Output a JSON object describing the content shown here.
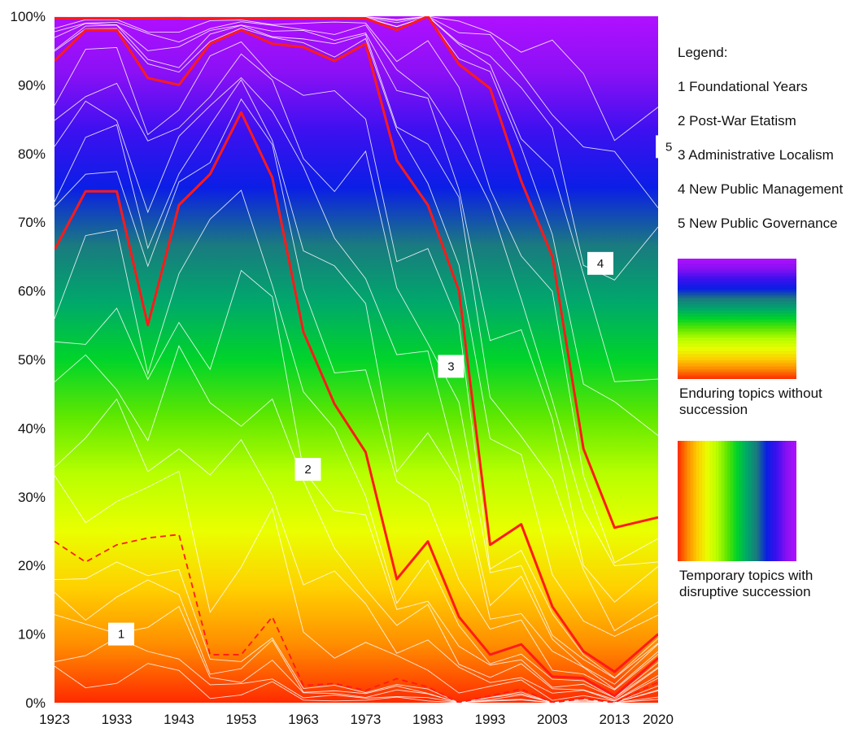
{
  "chart_data": {
    "type": "area",
    "stacked": true,
    "normalized": "percent",
    "x": [
      1923,
      1928,
      1933,
      1938,
      1943,
      1948,
      1953,
      1958,
      1963,
      1968,
      1973,
      1978,
      1983,
      1988,
      1993,
      1998,
      2003,
      2008,
      2013,
      2020
    ],
    "x_tick_labels": [
      "1923",
      "1933",
      "1943",
      "1953",
      "1963",
      "1973",
      "1983",
      "1993",
      "2003",
      "2013",
      "2020"
    ],
    "y_tick_labels": [
      "0%",
      "10%",
      "20%",
      "30%",
      "40%",
      "50%",
      "60%",
      "70%",
      "80%",
      "90%",
      "100%"
    ],
    "ylim": [
      0,
      100
    ],
    "era_boundaries_cumulative_percent": [
      {
        "name": "1 Foundational Years",
        "dashed": true,
        "values": [
          23.5,
          20.5,
          23,
          24,
          24.5,
          7,
          7,
          12.5,
          2.5,
          2.8,
          1.8,
          3.5,
          2.3,
          0,
          1,
          2,
          0,
          0.6,
          0,
          3
        ]
      },
      {
        "name": "2 Post-War Etatism",
        "dashed": false,
        "values": [
          66,
          74.5,
          74.5,
          55,
          72.5,
          77,
          86,
          76.5,
          54,
          43.5,
          36.5,
          18,
          23.5,
          12.5,
          7,
          8.5,
          3.8,
          3.6,
          1,
          6.5
        ]
      },
      {
        "name": "3 Administrative Localism",
        "dashed": false,
        "values": [
          93.5,
          98,
          98,
          91,
          90,
          96,
          98,
          96,
          95.5,
          93.5,
          96,
          79,
          72.5,
          60,
          23,
          26,
          14,
          7.5,
          4.5,
          10
        ]
      },
      {
        "name": "4 New Public Management",
        "dashed": false,
        "values": [
          99.7,
          99.7,
          99.7,
          99.7,
          99.7,
          99.7,
          99.7,
          99.7,
          99.7,
          99.7,
          99.7,
          98,
          100,
          93,
          89.5,
          76,
          65,
          37,
          25.5,
          27
        ]
      }
    ],
    "era_labels": [
      {
        "number": "1",
        "name": "Foundational Years",
        "x": 1923,
        "y": 10
      },
      {
        "number": "2",
        "name": "Post-War Etatism",
        "x": 1953,
        "y": 34
      },
      {
        "number": "3",
        "name": "Administrative Localism",
        "x": 1976,
        "y": 49
      },
      {
        "number": "4",
        "name": "New Public Management",
        "x": 2000,
        "y": 64
      },
      {
        "number": "5",
        "name": "New Public Governance",
        "x": 2011,
        "y": 81
      }
    ],
    "legend_title": "Legend:",
    "legend_items": [
      "1 Foundational Years",
      "2 Post-War Etatism",
      "3 Administrative Localism",
      "4 New Public Management",
      "5 New Public Governance"
    ],
    "colorbar_captions": [
      "Enduring topics without succession",
      "Temporary topics with disruptive succession"
    ],
    "grid": false,
    "legend_position": "right"
  },
  "colors": {
    "spectrum": [
      "#ff2a00",
      "#ff8c00",
      "#ffd000",
      "#eaff00",
      "#b8ff00",
      "#5fe800",
      "#00d42a",
      "#00a86b",
      "#1a7a80",
      "#0b1ee6",
      "#3d10f0",
      "#8a10f5",
      "#b010ff"
    ],
    "boundary": "#ff1a1a",
    "divider": "#ffffff"
  },
  "legend": {
    "title": "Legend:",
    "item1": "1 Foundational Years",
    "item2": "2 Post-War Etatism",
    "item3": "3 Administrative Localism",
    "item4": "4 New Public Management",
    "item5": "5 New Public Governance",
    "caption_enduring": "Enduring topics without succession",
    "caption_temporary": "Temporary topics with disruptive succession"
  }
}
